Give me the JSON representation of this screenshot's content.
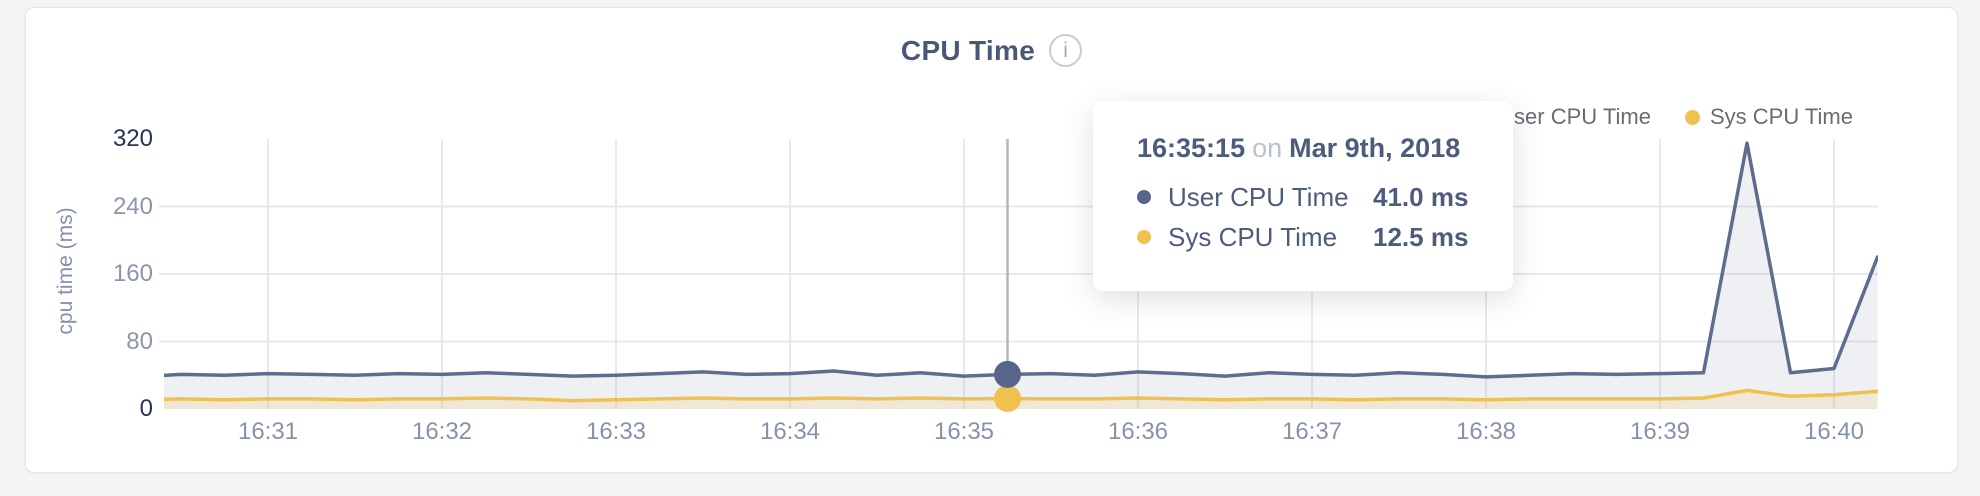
{
  "header": {
    "title": "CPU Time",
    "info_glyph": "i"
  },
  "legend": {
    "items": [
      {
        "label": "User CPU Time",
        "color": "#57658b"
      },
      {
        "label": "Sys CPU Time",
        "color": "#f0c150"
      }
    ]
  },
  "tooltip": {
    "time": "16:35:15",
    "connector": "on",
    "date": "Mar 9th, 2018",
    "rows": [
      {
        "label": "User CPU Time",
        "value": "41.0 ms",
        "color": "#57658b"
      },
      {
        "label": "Sys CPU Time",
        "value": "12.5 ms",
        "color": "#f0c150"
      }
    ]
  },
  "chart_data": {
    "type": "line",
    "title": "CPU Time",
    "xlabel": "",
    "ylabel": "cpu time (ms)",
    "ylim": [
      0,
      320
    ],
    "yticks": [
      0,
      80,
      160,
      240,
      320
    ],
    "xticks": [
      "16:31",
      "16:32",
      "16:33",
      "16:34",
      "16:35",
      "16:36",
      "16:37",
      "16:38",
      "16:39",
      "16:40"
    ],
    "grid": true,
    "legend_position": "top-right",
    "x_times": [
      "16:30:15",
      "16:30:30",
      "16:30:45",
      "16:31:00",
      "16:31:15",
      "16:31:30",
      "16:31:45",
      "16:32:00",
      "16:32:15",
      "16:32:30",
      "16:32:45",
      "16:33:00",
      "16:33:15",
      "16:33:30",
      "16:33:45",
      "16:34:00",
      "16:34:15",
      "16:34:30",
      "16:34:45",
      "16:35:00",
      "16:35:15",
      "16:35:30",
      "16:35:45",
      "16:36:00",
      "16:36:15",
      "16:36:30",
      "16:36:45",
      "16:37:00",
      "16:37:15",
      "16:37:30",
      "16:37:45",
      "16:38:00",
      "16:38:15",
      "16:38:30",
      "16:38:45",
      "16:39:00",
      "16:39:15",
      "16:39:30",
      "16:39:45",
      "16:40:00",
      "16:40:15"
    ],
    "series": [
      {
        "name": "User CPU Time",
        "color": "#5e6d8e",
        "fill": "rgba(96,111,144,0.10)",
        "values": [
          38,
          41,
          40,
          42,
          41,
          40,
          42,
          41,
          43,
          41,
          39,
          40,
          42,
          44,
          41,
          42,
          45,
          40,
          43,
          39,
          41,
          42,
          40,
          44,
          42,
          39,
          43,
          41,
          40,
          43,
          41,
          38,
          40,
          42,
          41,
          42,
          43,
          315,
          43,
          48,
          180
        ]
      },
      {
        "name": "Sys CPU Time",
        "color": "#f0c150",
        "fill": "rgba(240,193,75,0.16)",
        "values": [
          11,
          12,
          11,
          12,
          12,
          11,
          12,
          12,
          13,
          12,
          10,
          11,
          12,
          13,
          12,
          12,
          13,
          12,
          13,
          12,
          12.5,
          12,
          12,
          13,
          12,
          11,
          12,
          12,
          11,
          12,
          12,
          11,
          12,
          12,
          12,
          12,
          13,
          22,
          15,
          17,
          21
        ]
      }
    ],
    "hover": {
      "time": "16:35:15",
      "index": 20
    }
  },
  "colors": {
    "page_background": "#f4f4f6",
    "card_background": "#ffffff",
    "card_border": "#e5e5e7",
    "title_text": "#4a5878",
    "tick_text": "#8b96ab",
    "tick_text_emphasis": "#273455",
    "gridline": "#e9e9eb",
    "crosshair": "#b6b6b9",
    "legend_text": "#696c72",
    "tooltip_text": "#4d5b7c",
    "tooltip_muted": "#bcc2cb"
  }
}
